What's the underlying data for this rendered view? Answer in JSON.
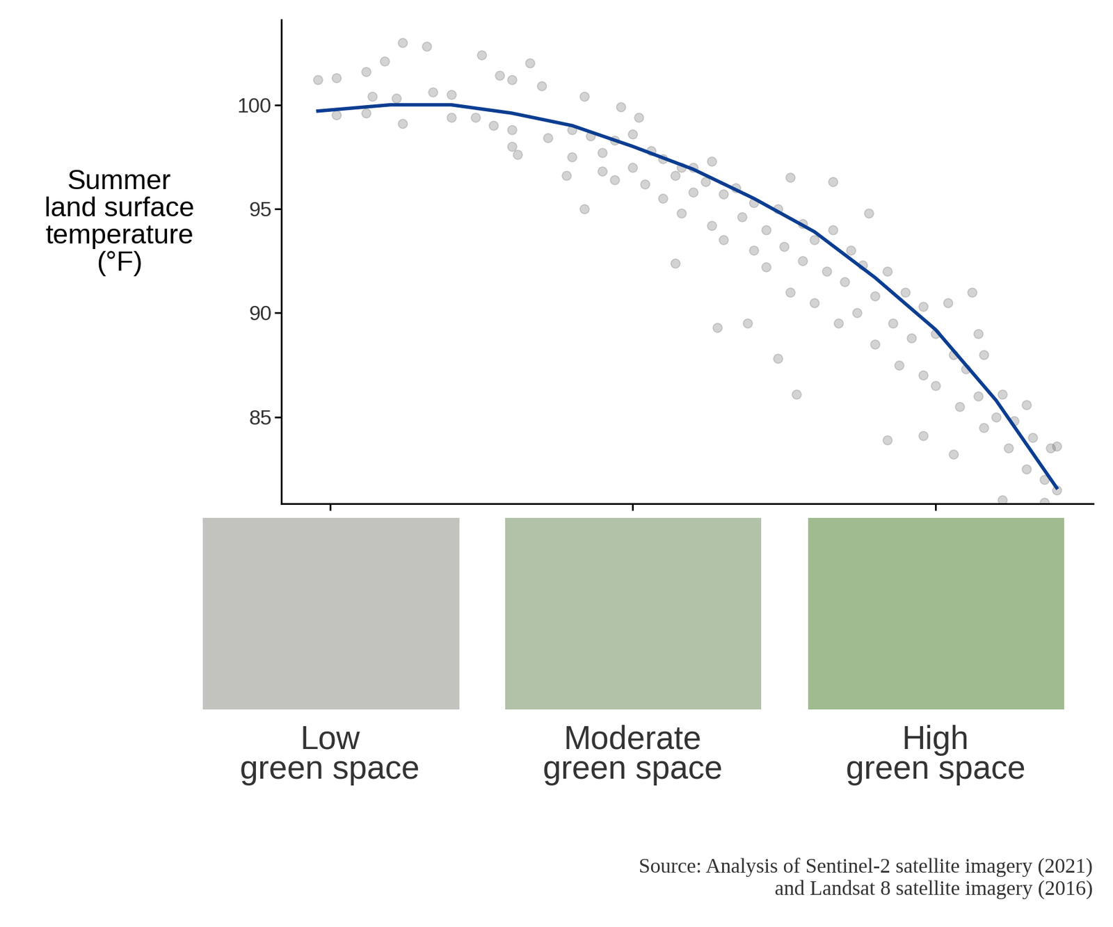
{
  "chart_data": {
    "type": "scatter",
    "y_label": "Summer\nland surface\ntemperature\n(°F)",
    "source": "Source: Analysis of Sentinel-2 satellite imagery (2021)\nand Landsat 8 satellite imagery (2016)",
    "xlim": [
      -0.08,
      1.26
    ],
    "ylim": [
      80.85,
      104.1
    ],
    "xticks": [
      {
        "value": 0,
        "label": "Low\ngreen space"
      },
      {
        "value": 0.5,
        "label": "Moderate\ngreen space"
      },
      {
        "value": 1,
        "label": "High\ngreen space"
      }
    ],
    "yticks": [
      85,
      90,
      95,
      100
    ],
    "grid": false,
    "series": [
      {
        "type": "scatter",
        "color": "#6e6e6e",
        "marker": "o",
        "x": [
          -0.02,
          0.01,
          0.01,
          0.06,
          0.07,
          0.06,
          0.09,
          0.11,
          0.12,
          0.12,
          0.16,
          0.17,
          0.2,
          0.2,
          0.25,
          0.24,
          0.28,
          0.27,
          0.3,
          0.33,
          0.3,
          0.3,
          0.31,
          0.35,
          0.36,
          0.39,
          0.42,
          0.42,
          0.45,
          0.48,
          0.47,
          0.51,
          0.57,
          0.64,
          0.58,
          0.63,
          0.69,
          0.74,
          0.77,
          0.76,
          0.83,
          0.89,
          0.92,
          0.98,
          1.06,
          1.03,
          1.07,
          1.11,
          1.18,
          1.19,
          1.15,
          1.11,
          1.08,
          0.4,
          0.4,
          0.43,
          0.45,
          0.47,
          0.5,
          0.5,
          0.52,
          0.53,
          0.55,
          0.55,
          0.57,
          0.58,
          0.6,
          0.6,
          0.62,
          0.63,
          0.65,
          0.65,
          0.67,
          0.68,
          0.7,
          0.7,
          0.72,
          0.72,
          0.74,
          0.75,
          0.76,
          0.78,
          0.78,
          0.8,
          0.8,
          0.82,
          0.83,
          0.84,
          0.85,
          0.86,
          0.87,
          0.88,
          0.9,
          0.9,
          0.92,
          0.93,
          0.94,
          0.95,
          0.96,
          0.98,
          0.98,
          1.0,
          1.0,
          1.02,
          1.03,
          1.04,
          1.05,
          1.07,
          1.08,
          1.1,
          1.12,
          1.13,
          1.15,
          1.16,
          1.18,
          1.2,
          1.2
        ],
        "values": [
          101.2,
          101.3,
          99.5,
          101.6,
          100.4,
          99.6,
          102.1,
          100.3,
          103.0,
          99.1,
          102.8,
          100.6,
          100.5,
          99.4,
          102.4,
          99.4,
          101.4,
          99.0,
          101.2,
          102.0,
          98.8,
          98.0,
          97.6,
          100.9,
          98.4,
          96.6,
          100.4,
          95.0,
          97.7,
          99.9,
          96.4,
          99.4,
          92.4,
          89.3,
          97.0,
          97.3,
          89.5,
          87.8,
          86.1,
          96.5,
          96.3,
          94.8,
          83.9,
          84.1,
          91.0,
          83.2,
          89.0,
          81.0,
          80.9,
          83.5,
          85.6,
          86.1,
          88.0,
          98.8,
          97.5,
          98.5,
          96.8,
          98.3,
          97.0,
          98.6,
          96.2,
          97.8,
          95.5,
          97.4,
          96.6,
          94.8,
          97.0,
          95.8,
          96.3,
          94.2,
          95.7,
          93.5,
          96.0,
          94.6,
          93.0,
          95.3,
          94.0,
          92.2,
          95.0,
          93.2,
          91.0,
          94.3,
          92.5,
          93.5,
          90.5,
          92.0,
          94.0,
          89.5,
          91.5,
          93.0,
          90.0,
          92.3,
          90.8,
          88.5,
          92.0,
          89.5,
          87.5,
          91.0,
          88.8,
          90.3,
          87.0,
          89.0,
          86.5,
          90.5,
          88.0,
          85.5,
          87.3,
          86.0,
          84.5,
          85.0,
          83.5,
          84.8,
          82.5,
          84.0,
          82.0,
          83.6,
          81.5
        ]
      },
      {
        "type": "line",
        "color": "#0b3d91",
        "line_style": "solid",
        "x": [
          -0.02,
          0.1,
          0.2,
          0.3,
          0.4,
          0.5,
          0.6,
          0.7,
          0.8,
          0.9,
          1.0,
          1.1,
          1.2
        ],
        "values": [
          99.7,
          100.0,
          100.0,
          99.6,
          99.0,
          98.0,
          96.9,
          95.5,
          93.9,
          91.7,
          89.2,
          85.8,
          81.6
        ]
      }
    ]
  }
}
